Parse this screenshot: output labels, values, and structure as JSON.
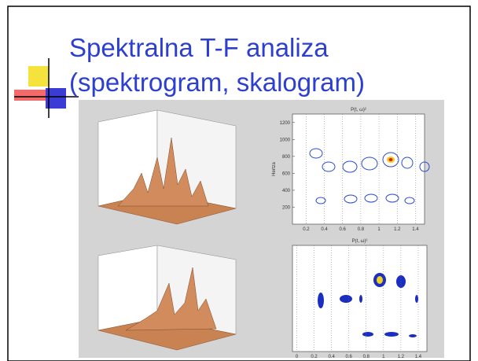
{
  "slide": {
    "title": [
      "Spektralna T-F analiza",
      "(spektrogram, skalogram)"
    ]
  },
  "panels": [
    {
      "title": "P(t, ω)²",
      "ylabel": "Hertza",
      "xlim": [
        0.05,
        1.5
      ],
      "xticks": [
        0.2,
        0.4,
        0.6,
        0.8,
        1,
        1.2,
        1.4
      ],
      "ylim": [
        0,
        1300
      ],
      "yticks": [
        200,
        400,
        600,
        800,
        1000,
        1200
      ]
    },
    {
      "title": "P(t, ω)²",
      "xlim": [
        -0.05,
        1.5
      ],
      "xticks": [
        0,
        0.2,
        0.4,
        0.6,
        0.8,
        1,
        1.2,
        1.4
      ]
    }
  ]
}
